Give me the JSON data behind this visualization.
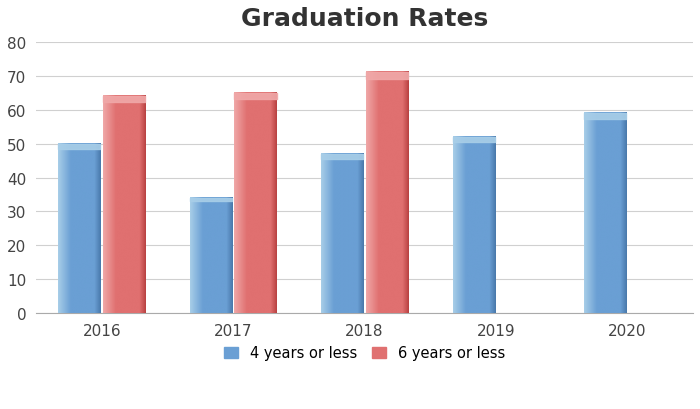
{
  "title": "Graduation Rates",
  "years": [
    "2016",
    "2017",
    "2018",
    "2019",
    "2020"
  ],
  "values_4yr": [
    50,
    34,
    47,
    52,
    59
  ],
  "values_6yr": [
    64,
    65,
    71,
    0,
    0
  ],
  "color_4yr_main": "#6A9FD4",
  "color_4yr_light": "#A8CEE8",
  "color_4yr_dark": "#4878AA",
  "color_6yr_main": "#E07070",
  "color_6yr_light": "#F0A8A8",
  "color_6yr_dark": "#B84040",
  "ylim": [
    0,
    80
  ],
  "yticks": [
    0,
    10,
    20,
    30,
    40,
    50,
    60,
    70,
    80
  ],
  "legend_4yr": "4 years or less",
  "legend_6yr": "6 years or less",
  "title_fontsize": 18,
  "background_color": "#FFFFFF",
  "bar_width": 0.32,
  "grid_color": "#D0D0D0",
  "tick_fontsize": 11
}
